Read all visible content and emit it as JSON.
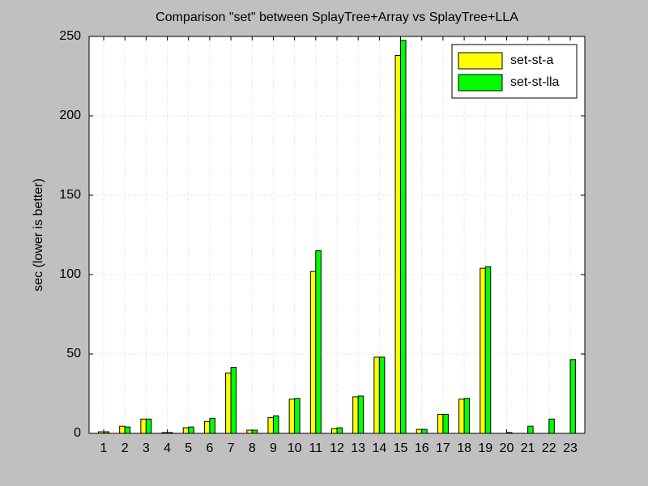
{
  "chart_data": {
    "type": "bar",
    "title": "Comparison \"set\" between SplayTree+Array vs SplayTree+LLA",
    "y_label": "sec (lower is better)",
    "categories": [
      "1",
      "2",
      "3",
      "4",
      "5",
      "6",
      "7",
      "8",
      "9",
      "10",
      "11",
      "12",
      "13",
      "14",
      "15",
      "16",
      "17",
      "18",
      "19",
      "20",
      "21",
      "22",
      "23"
    ],
    "series": [
      {
        "name": "set-st-a",
        "color": "#ffff00",
        "values": [
          1,
          4.5,
          9,
          0.5,
          3.5,
          7.5,
          38,
          2,
          10,
          21.5,
          102,
          3,
          23,
          48,
          238,
          2.5,
          12,
          21.5,
          104,
          0,
          0,
          0,
          0
        ]
      },
      {
        "name": "set-st-lla",
        "color": "#00ff00",
        "values": [
          1,
          4,
          9,
          0.5,
          4,
          9.5,
          41.5,
          2,
          11,
          22,
          115,
          3.5,
          23.5,
          48,
          247.5,
          2.5,
          12,
          22,
          105,
          0.5,
          4.5,
          9,
          46.5
        ]
      }
    ],
    "ylim": [
      0,
      250
    ],
    "yticks": [
      0,
      50,
      100,
      150,
      200,
      250
    ],
    "grid": true,
    "legend": "upper right"
  }
}
